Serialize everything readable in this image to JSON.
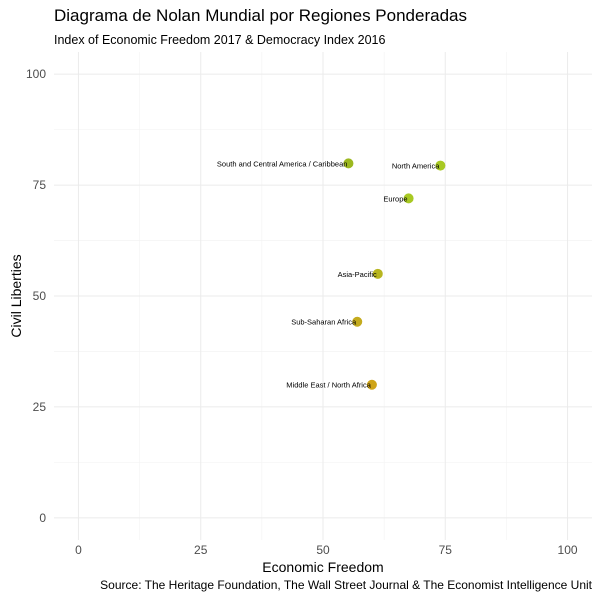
{
  "chart_data": {
    "type": "scatter",
    "title": "Diagrama de Nolan Mundial por Regiones Ponderadas",
    "subtitle": "Index of Economic Freedom 2017 & Democracy Index 2016",
    "caption": "Source: The Heritage Foundation, The Wall Street Journal & The Economist Intelligence Unit",
    "xlabel": "Economic Freedom",
    "ylabel": "Civil Liberties",
    "xlim": [
      -5,
      105
    ],
    "ylim": [
      -5,
      105
    ],
    "xticks": [
      0,
      25,
      50,
      75,
      100
    ],
    "yticks": [
      0,
      25,
      50,
      75,
      100
    ],
    "grid": true,
    "points": [
      {
        "label": "South and Central America / Caribbean",
        "x": 55.2,
        "y": 79.9,
        "color": "#9cb81f"
      },
      {
        "label": "North America",
        "x": 74.0,
        "y": 79.4,
        "color": "#a8c923"
      },
      {
        "label": "Europe",
        "x": 67.5,
        "y": 72.0,
        "color": "#a8c923"
      },
      {
        "label": "Asia-Pacific",
        "x": 61.2,
        "y": 55.0,
        "color": "#b7b51f"
      },
      {
        "label": "Sub-Saharan Africa",
        "x": 57.0,
        "y": 44.2,
        "color": "#c4ab1e"
      },
      {
        "label": "Middle East / North Africa",
        "x": 60.0,
        "y": 30.0,
        "color": "#cfa418"
      }
    ]
  }
}
